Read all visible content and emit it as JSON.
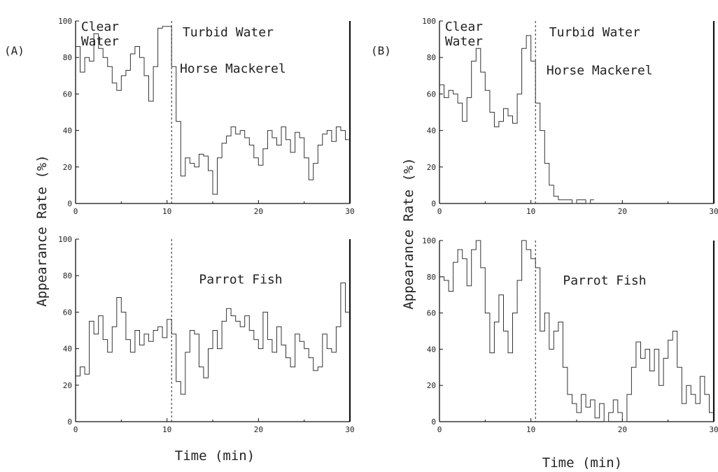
{
  "panel_labels": [
    "(A)",
    "(B)"
  ],
  "ylabel": "Appearance Rate (%)",
  "xlabel": "Time (min)",
  "chart_data": [
    {
      "type": "line",
      "panel": "(A)",
      "position": "top",
      "xlim": [
        0,
        30
      ],
      "ylim": [
        0,
        100
      ],
      "xticks": [
        0,
        10,
        20,
        30
      ],
      "yticks": [
        0,
        20,
        40,
        60,
        80,
        100
      ],
      "divider_x": 10.5,
      "annotations": [
        "Clear",
        "Water",
        "Turbid  Water",
        "Horse Mackerel"
      ],
      "series": [
        {
          "name": "Horse Mackerel",
          "x": [
            0.0,
            0.5,
            1.0,
            1.5,
            2.0,
            2.5,
            3.0,
            3.5,
            4.0,
            4.5,
            5.0,
            5.5,
            6.0,
            6.5,
            7.0,
            7.5,
            8.0,
            8.5,
            9.0,
            9.5,
            10.0,
            10.5,
            11.0,
            11.5,
            12.0,
            12.5,
            13.0,
            13.5,
            14.0,
            14.5,
            15.0,
            15.5,
            16.0,
            16.5,
            17.0,
            17.5,
            18.0,
            18.5,
            19.0,
            19.5,
            20.0,
            20.5,
            21.0,
            21.5,
            22.0,
            22.5,
            23.0,
            23.5,
            24.0,
            24.5,
            25.0,
            25.5,
            26.0,
            26.5,
            27.0,
            27.5,
            28.0,
            28.5,
            29.0,
            29.5
          ],
          "y": [
            86,
            72,
            80,
            78,
            93,
            85,
            80,
            75,
            66,
            62,
            70,
            73,
            82,
            86,
            80,
            70,
            56,
            75,
            96,
            97,
            97,
            75,
            45,
            15,
            25,
            22,
            20,
            27,
            26,
            18,
            5,
            25,
            33,
            37,
            42,
            38,
            40,
            36,
            32,
            25,
            21,
            30,
            40,
            36,
            32,
            42,
            35,
            28,
            39,
            36,
            25,
            13,
            22,
            32,
            38,
            40,
            34,
            42,
            40,
            35
          ]
        }
      ]
    },
    {
      "type": "line",
      "panel": "(A)",
      "position": "bottom",
      "xlim": [
        0,
        30
      ],
      "ylim": [
        0,
        100
      ],
      "xticks": [
        0,
        10,
        20,
        30
      ],
      "yticks": [
        0,
        20,
        40,
        60,
        80,
        100
      ],
      "divider_x": 10.5,
      "annotations": [
        "Parrot Fish"
      ],
      "series": [
        {
          "name": "Parrot Fish",
          "x": [
            0.0,
            0.5,
            1.0,
            1.5,
            2.0,
            2.5,
            3.0,
            3.5,
            4.0,
            4.5,
            5.0,
            5.5,
            6.0,
            6.5,
            7.0,
            7.5,
            8.0,
            8.5,
            9.0,
            9.5,
            10.0,
            10.5,
            11.0,
            11.5,
            12.0,
            12.5,
            13.0,
            13.5,
            14.0,
            14.5,
            15.0,
            15.5,
            16.0,
            16.5,
            17.0,
            17.5,
            18.0,
            18.5,
            19.0,
            19.5,
            20.0,
            20.5,
            21.0,
            21.5,
            22.0,
            22.5,
            23.0,
            23.5,
            24.0,
            24.5,
            25.0,
            25.5,
            26.0,
            26.5,
            27.0,
            27.5,
            28.0,
            28.5,
            29.0,
            29.5
          ],
          "y": [
            25,
            30,
            26,
            55,
            48,
            58,
            45,
            38,
            52,
            68,
            60,
            45,
            38,
            50,
            42,
            48,
            44,
            50,
            52,
            46,
            56,
            48,
            22,
            15,
            38,
            50,
            48,
            30,
            24,
            40,
            50,
            40,
            55,
            62,
            58,
            55,
            52,
            58,
            50,
            45,
            40,
            60,
            45,
            38,
            52,
            42,
            35,
            30,
            48,
            44,
            40,
            35,
            28,
            30,
            48,
            40,
            38,
            52,
            76,
            60
          ]
        }
      ]
    },
    {
      "type": "line",
      "panel": "(B)",
      "position": "top",
      "xlim": [
        0,
        30
      ],
      "ylim": [
        0,
        100
      ],
      "xticks": [
        0,
        10,
        20,
        30
      ],
      "yticks": [
        0,
        20,
        40,
        60,
        80,
        100
      ],
      "divider_x": 10.5,
      "annotations": [
        "Clear",
        "Water",
        "Turbid  Water",
        "Horse Mackerel"
      ],
      "series": [
        {
          "name": "Horse Mackerel",
          "x": [
            0.0,
            0.5,
            1.0,
            1.5,
            2.0,
            2.5,
            3.0,
            3.5,
            4.0,
            4.5,
            5.0,
            5.5,
            6.0,
            6.5,
            7.0,
            7.5,
            8.0,
            8.5,
            9.0,
            9.5,
            10.0,
            10.5,
            11.0,
            11.5,
            12.0,
            12.5,
            13.0,
            13.5,
            14.0,
            14.5,
            15.0,
            15.5,
            16.0,
            16.5
          ],
          "y": [
            65,
            58,
            62,
            60,
            55,
            45,
            58,
            78,
            85,
            72,
            62,
            50,
            42,
            45,
            52,
            48,
            44,
            60,
            85,
            92,
            78,
            55,
            40,
            22,
            10,
            4,
            2,
            2,
            2,
            0,
            2,
            2,
            0,
            2
          ]
        }
      ]
    },
    {
      "type": "line",
      "panel": "(B)",
      "position": "bottom",
      "xlim": [
        0,
        30
      ],
      "ylim": [
        0,
        100
      ],
      "xticks": [
        0,
        10,
        20,
        30
      ],
      "yticks": [
        0,
        20,
        40,
        60,
        80,
        100
      ],
      "divider_x": 10.5,
      "annotations": [
        "Parrot Fish"
      ],
      "series": [
        {
          "name": "Parrot Fish",
          "x": [
            0.0,
            0.5,
            1.0,
            1.5,
            2.0,
            2.5,
            3.0,
            3.5,
            4.0,
            4.5,
            5.0,
            5.5,
            6.0,
            6.5,
            7.0,
            7.5,
            8.0,
            8.5,
            9.0,
            9.5,
            10.0,
            10.5,
            11.0,
            11.5,
            12.0,
            12.5,
            13.0,
            13.5,
            14.0,
            14.5,
            15.0,
            15.5,
            16.0,
            16.5,
            17.0,
            17.5,
            18.0,
            18.5,
            19.0,
            19.5,
            20.0,
            20.5,
            21.0,
            21.5,
            22.0,
            22.5,
            23.0,
            23.5,
            24.0,
            24.5,
            25.0,
            25.5,
            26.0,
            26.5,
            27.0,
            27.5,
            28.0,
            28.5,
            29.0,
            29.5
          ],
          "y": [
            80,
            78,
            72,
            88,
            95,
            90,
            75,
            95,
            100,
            85,
            60,
            38,
            55,
            70,
            50,
            38,
            60,
            78,
            100,
            95,
            90,
            85,
            50,
            60,
            40,
            50,
            55,
            30,
            15,
            10,
            5,
            15,
            8,
            12,
            2,
            10,
            0,
            5,
            12,
            5,
            0,
            15,
            30,
            44,
            35,
            40,
            28,
            40,
            20,
            35,
            45,
            50,
            30,
            10,
            20,
            15,
            10,
            25,
            15,
            5
          ]
        }
      ]
    }
  ]
}
